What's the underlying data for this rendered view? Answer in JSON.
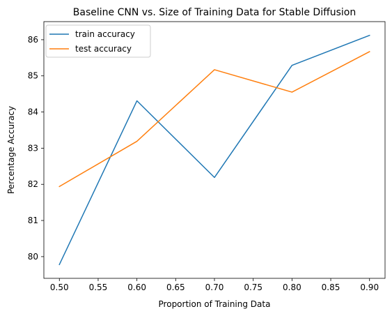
{
  "chart_data": {
    "type": "line",
    "title": "Baseline CNN vs. Size of Training Data for Stable Diffusion",
    "xlabel": "Proportion of Training Data",
    "ylabel": "Percentage Accuracy",
    "x": [
      0.5,
      0.6,
      0.7,
      0.8,
      0.9
    ],
    "xlim": [
      0.48,
      0.92
    ],
    "ylim": [
      79.4,
      86.5
    ],
    "xticks": [
      0.5,
      0.55,
      0.6,
      0.65,
      0.7,
      0.75,
      0.8,
      0.85,
      0.9
    ],
    "xtick_labels": [
      "0.50",
      "0.55",
      "0.60",
      "0.65",
      "0.70",
      "0.75",
      "0.80",
      "0.85",
      "0.90"
    ],
    "yticks": [
      80,
      81,
      82,
      83,
      84,
      85,
      86
    ],
    "ytick_labels": [
      "80",
      "81",
      "82",
      "83",
      "84",
      "85",
      "86"
    ],
    "grid": false,
    "legend_position": "top-left",
    "series": [
      {
        "name": "train accuracy",
        "color": "#1f77b4",
        "values": [
          79.78,
          84.31,
          82.19,
          85.29,
          86.12
        ]
      },
      {
        "name": "test accuracy",
        "color": "#ff7f0e",
        "values": [
          81.94,
          83.19,
          85.17,
          84.55,
          85.67
        ]
      }
    ]
  }
}
